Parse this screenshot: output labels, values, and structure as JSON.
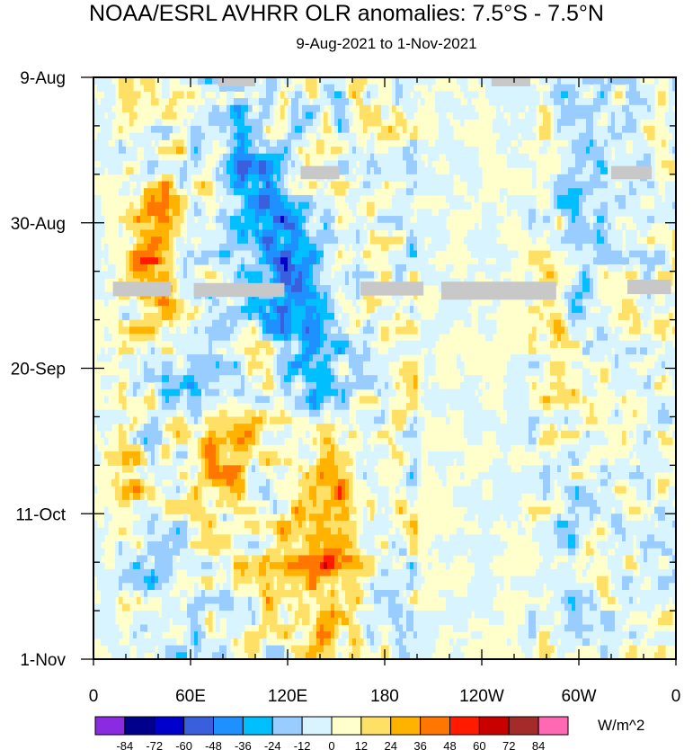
{
  "chart_data": {
    "type": "heatmap",
    "title": "NOAA/ESRL AVHRR OLR anomalies: 7.5°S - 7.5°N",
    "subtitle": "9-Aug-2021 to 1-Nov-2021",
    "x_ticks": [
      {
        "label": "0",
        "lon": 0
      },
      {
        "label": "60E",
        "lon": 60
      },
      {
        "label": "120E",
        "lon": 120
      },
      {
        "label": "180",
        "lon": 180
      },
      {
        "label": "120W",
        "lon": 240
      },
      {
        "label": "60W",
        "lon": 300
      },
      {
        "label": "0",
        "lon": 360
      }
    ],
    "x_range": [
      0,
      360
    ],
    "y_ticks": [
      {
        "label": "9-Aug",
        "day": 0
      },
      {
        "label": "30-Aug",
        "day": 21
      },
      {
        "label": "20-Sep",
        "day": 42
      },
      {
        "label": "11-Oct",
        "day": 63
      },
      {
        "label": "1-Nov",
        "day": 84
      }
    ],
    "y_range_days": [
      0,
      84
    ],
    "y_direction": "time increases downward",
    "colorbar": {
      "units": "W/m^2",
      "levels": [
        "-84",
        "-72",
        "-60",
        "-48",
        "-36",
        "-24",
        "-12",
        "0",
        "12",
        "24",
        "36",
        "48",
        "60",
        "72",
        "84"
      ],
      "colors": [
        "#8a2be2",
        "#00008b",
        "#0000cd",
        "#3a5fdc",
        "#1e90ff",
        "#00bfff",
        "#99ccff",
        "#d8f4ff",
        "#ffffcc",
        "#ffe066",
        "#ffb300",
        "#ff7700",
        "#ff1a00",
        "#c80000",
        "#a52a2a",
        "#ff69b4"
      ]
    },
    "missing_color": "#c8c8c8",
    "features": [
      {
        "name": "MJO convective envelope (Indian Ocean to West Pacific)",
        "sign": "negative",
        "start_lon": 85,
        "start_day": 2,
        "end_lon": 150,
        "end_day": 50,
        "min_anomaly": -72
      },
      {
        "name": "suppressed convection, Indian Ocean",
        "sign": "positive",
        "lon": 90,
        "day": 52,
        "max_anomaly": 60
      },
      {
        "name": "suppressed convection, West Pacific",
        "sign": "positive",
        "lon": 150,
        "day": 64,
        "max_anomaly": 60
      },
      {
        "name": "Atlantic / South America convective band",
        "sign": "negative",
        "lon": 300,
        "day": 20,
        "min_anomaly": -48
      }
    ],
    "missing_data": [
      {
        "lon_range": [
          77,
          100
        ],
        "day_range": [
          0,
          1.3
        ]
      },
      {
        "lon_range": [
          246,
          270
        ],
        "day_range": [
          0,
          1.3
        ]
      },
      {
        "lon_range": [
          128,
          152
        ],
        "day_range": [
          12.8,
          14.7
        ]
      },
      {
        "lon_range": [
          320,
          345
        ],
        "day_range": [
          12.8,
          14.7
        ]
      },
      {
        "lon_range": [
          12,
          48
        ],
        "day_range": [
          29.5,
          31.6
        ]
      },
      {
        "lon_range": [
          62,
          118
        ],
        "day_range": [
          29.7,
          31.7
        ]
      },
      {
        "lon_range": [
          165,
          204
        ],
        "day_range": [
          29.5,
          31.5
        ]
      },
      {
        "lon_range": [
          215,
          286
        ],
        "day_range": [
          29.5,
          32.1
        ]
      },
      {
        "lon_range": [
          330,
          357
        ],
        "day_range": [
          29.2,
          31.3
        ]
      }
    ]
  }
}
